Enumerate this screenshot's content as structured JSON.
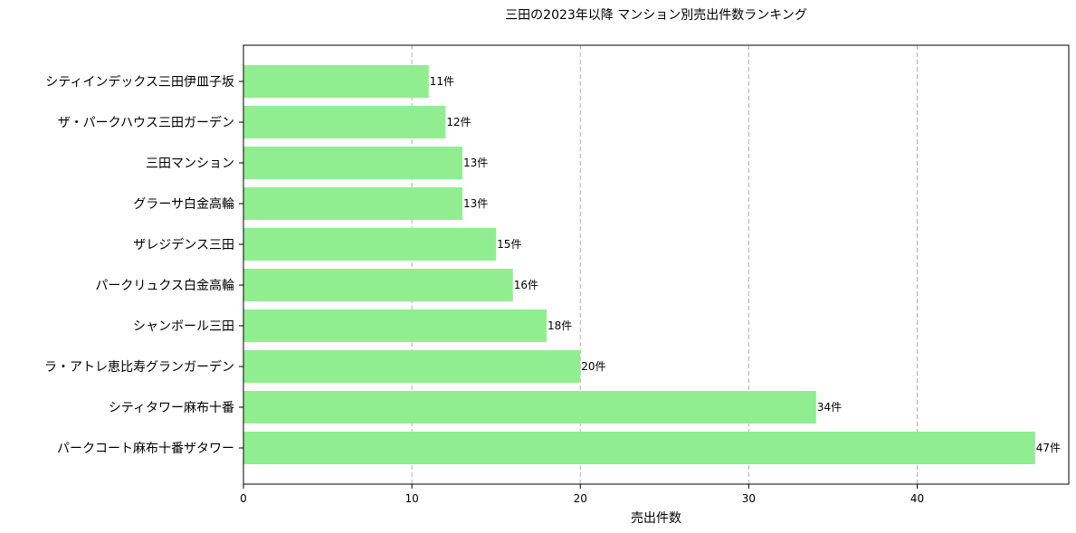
{
  "chart_data": {
    "type": "bar",
    "orientation": "horizontal",
    "title": "三田の2023年以降 マンション別売出件数ランキング",
    "xlabel": "売出件数",
    "ylabel": "",
    "xlim": [
      0,
      49
    ],
    "xticks": [
      0,
      10,
      20,
      30,
      40
    ],
    "grid": "x-dashed",
    "bar_color": "#90ee90",
    "value_suffix": "件",
    "categories": [
      "シティインデックス三田伊皿子坂",
      "ザ・パークハウス三田ガーデン",
      "三田マンション",
      "グラーサ白金高輪",
      "ザレジデンス三田",
      "パークリュクス白金高輪",
      "シャンボール三田",
      "ラ・アトレ恵比寿グランガーデン",
      "シティタワー麻布十番",
      "パークコート麻布十番ザタワー"
    ],
    "values": [
      11,
      12,
      13,
      13,
      15,
      16,
      18,
      20,
      34,
      47
    ],
    "data_labels": [
      "11件",
      "12件",
      "13件",
      "13件",
      "15件",
      "16件",
      "18件",
      "20件",
      "34件",
      "47件"
    ]
  }
}
